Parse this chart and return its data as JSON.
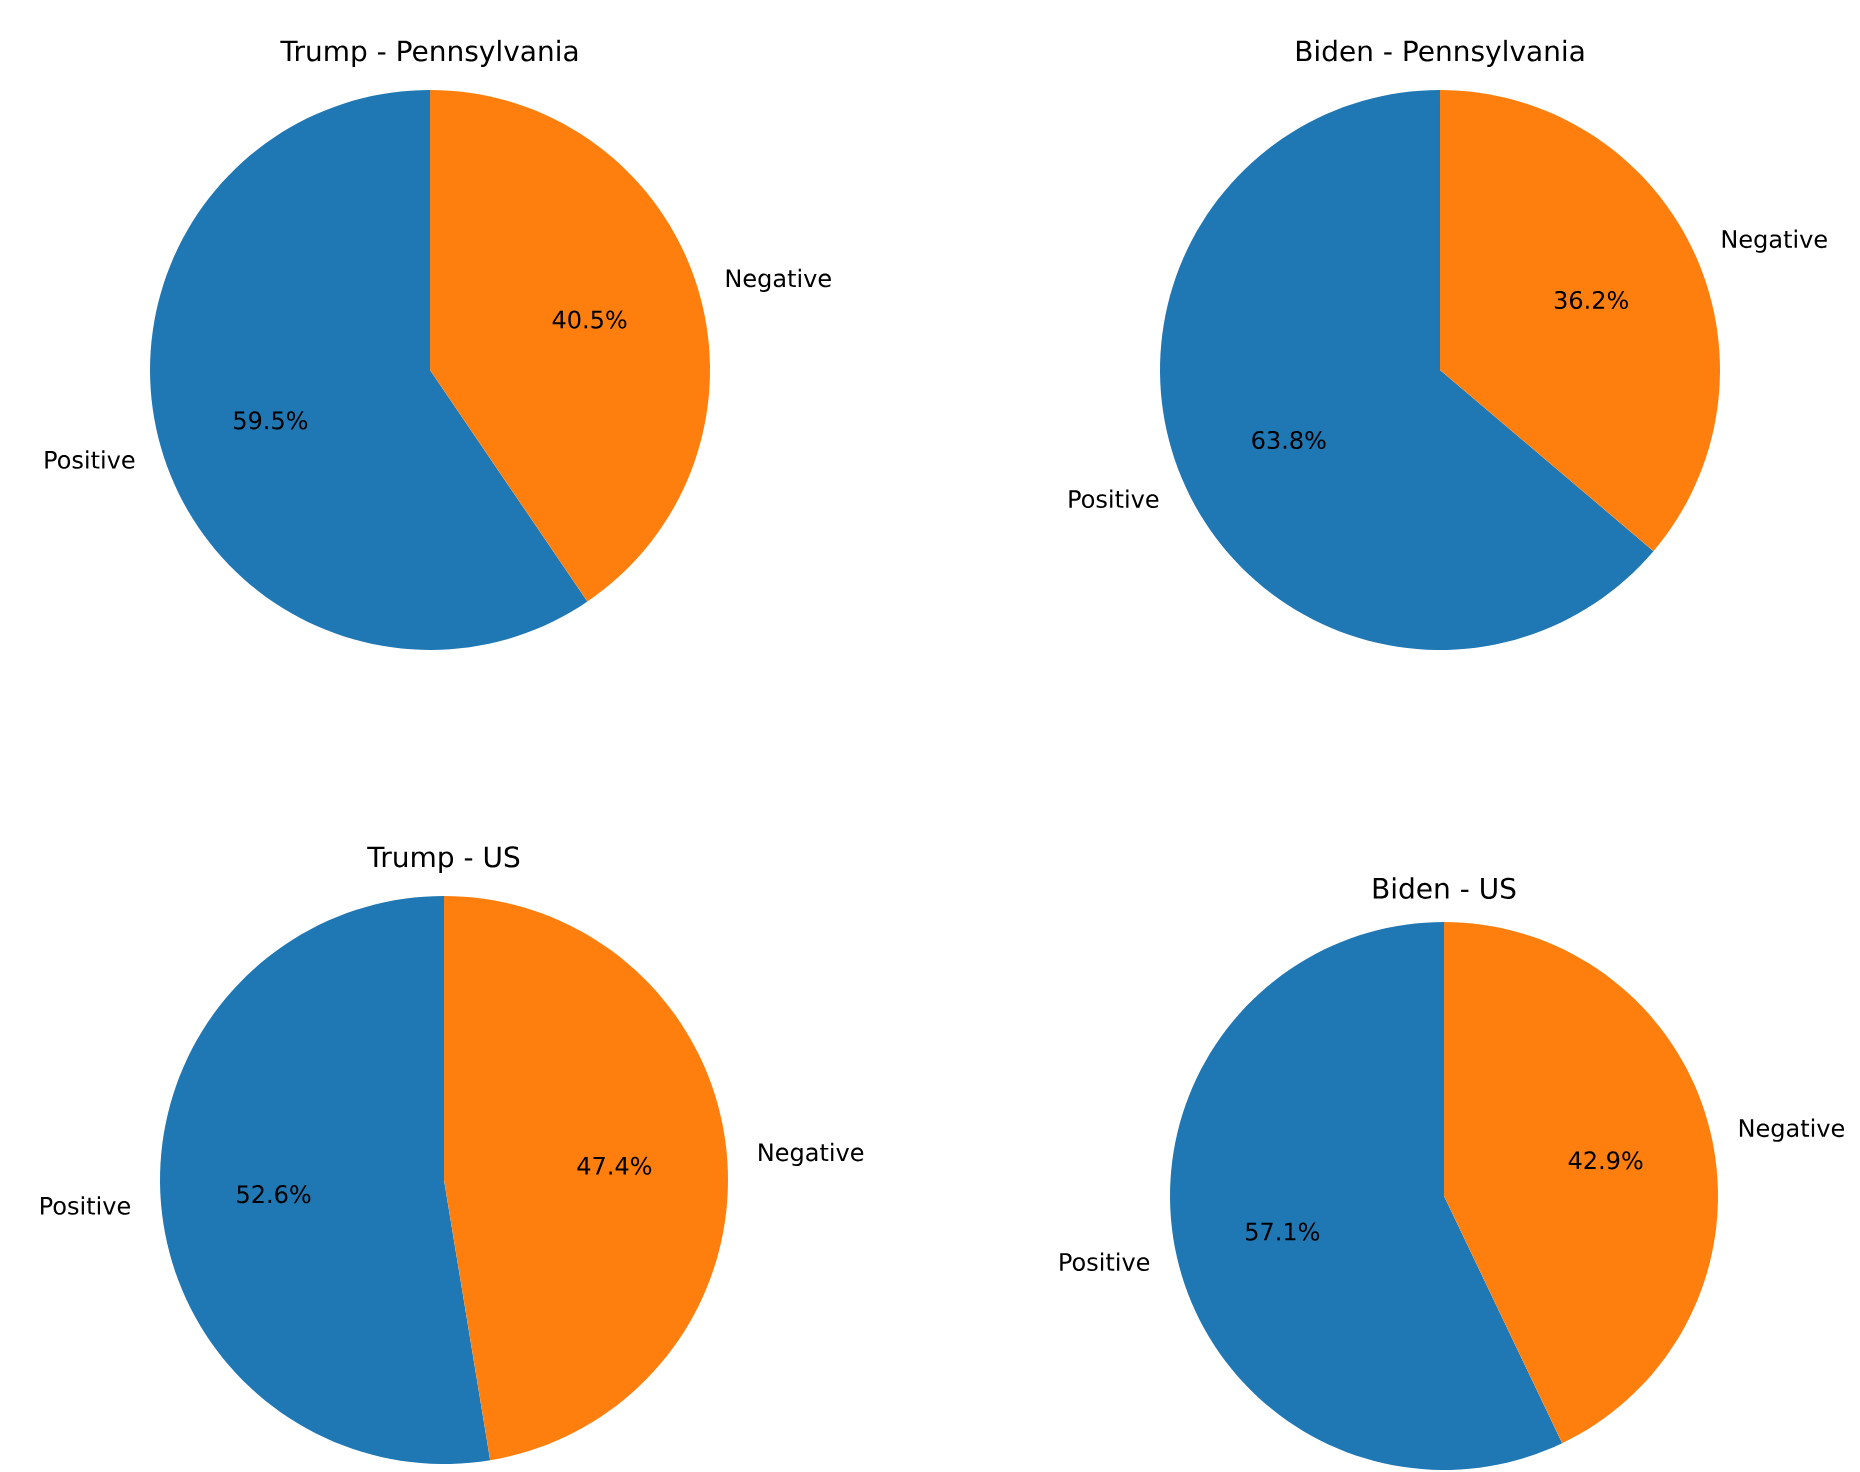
{
  "chart_data": [
    {
      "type": "pie",
      "title": "Trump - Pennsylvania",
      "categories": [
        "Positive",
        "Negative"
      ],
      "values": [
        59.5,
        40.5
      ],
      "value_labels": [
        "59.5%",
        "40.5%"
      ],
      "colors": [
        "#1f77b4",
        "#ff7f0e"
      ]
    },
    {
      "type": "pie",
      "title": "Biden - Pennsylvania",
      "categories": [
        "Positive",
        "Negative"
      ],
      "values": [
        63.8,
        36.2
      ],
      "value_labels": [
        "63.8%",
        "36.2%"
      ],
      "colors": [
        "#1f77b4",
        "#ff7f0e"
      ]
    },
    {
      "type": "pie",
      "title": "Trump - US",
      "categories": [
        "Positive",
        "Negative"
      ],
      "values": [
        52.6,
        47.4
      ],
      "value_labels": [
        "52.6%",
        "47.4%"
      ],
      "colors": [
        "#1f77b4",
        "#ff7f0e"
      ]
    },
    {
      "type": "pie",
      "title": "Biden - US",
      "categories": [
        "Positive",
        "Negative"
      ],
      "values": [
        57.1,
        42.9
      ],
      "value_labels": [
        "57.1%",
        "42.9%"
      ],
      "colors": [
        "#1f77b4",
        "#ff7f0e"
      ]
    }
  ]
}
